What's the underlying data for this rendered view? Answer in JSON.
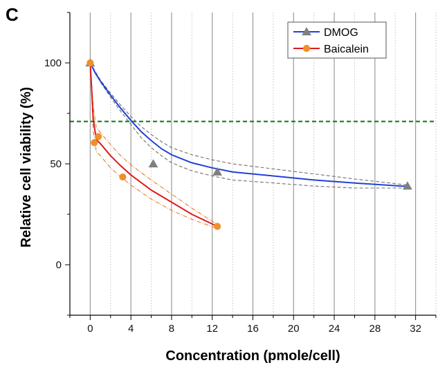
{
  "panel_label": "C",
  "chart_data": {
    "type": "scatter",
    "xlabel": "Concentration (pmole/cell)",
    "ylabel": "Relative cell viability (%)",
    "xlim": [
      -2,
      34
    ],
    "ylim": [
      -25,
      125
    ],
    "xticks": [
      0,
      4,
      8,
      12,
      16,
      20,
      24,
      28,
      32
    ],
    "yticks": [
      0,
      50,
      100
    ],
    "grid": "vertical",
    "legend_position": "top-right",
    "threshold_line": {
      "y": 71,
      "color": "#1a7a1a",
      "style": "dashed"
    },
    "series": [
      {
        "name": "DMOG",
        "marker": "triangle",
        "marker_color": "#808080",
        "line_color": "#2040d8",
        "points": [
          {
            "x": 0,
            "y": 100
          },
          {
            "x": 6.2,
            "y": 50
          },
          {
            "x": 12.5,
            "y": 46
          },
          {
            "x": 31.2,
            "y": 39
          }
        ],
        "fit": [
          [
            0,
            100
          ],
          [
            0.5,
            95
          ],
          [
            1,
            91
          ],
          [
            2,
            84
          ],
          [
            3,
            77.5
          ],
          [
            4,
            71.5
          ],
          [
            5,
            66
          ],
          [
            6,
            61.5
          ],
          [
            7,
            57.5
          ],
          [
            8,
            54.5
          ],
          [
            10,
            50.5
          ],
          [
            12,
            48
          ],
          [
            14,
            46
          ],
          [
            18,
            44
          ],
          [
            22,
            42
          ],
          [
            26,
            40.5
          ],
          [
            31.2,
            38.8
          ]
        ],
        "ci_upper": [
          [
            0,
            100
          ],
          [
            1,
            91.5
          ],
          [
            2,
            85
          ],
          [
            3,
            79
          ],
          [
            4,
            73.5
          ],
          [
            5,
            68.5
          ],
          [
            6,
            64.5
          ],
          [
            7,
            61
          ],
          [
            8,
            58
          ],
          [
            10,
            54.5
          ],
          [
            12,
            52
          ],
          [
            14,
            50
          ],
          [
            18,
            47.5
          ],
          [
            22,
            45
          ],
          [
            26,
            42.5
          ],
          [
            31.2,
            39.5
          ]
        ],
        "ci_lower": [
          [
            0,
            100
          ],
          [
            1,
            90.5
          ],
          [
            2,
            83
          ],
          [
            3,
            76
          ],
          [
            4,
            69.5
          ],
          [
            5,
            63
          ],
          [
            6,
            58
          ],
          [
            7,
            54
          ],
          [
            8,
            50.5
          ],
          [
            10,
            46.5
          ],
          [
            12,
            44
          ],
          [
            14,
            42
          ],
          [
            18,
            40.5
          ],
          [
            22,
            39
          ],
          [
            26,
            38
          ],
          [
            31.2,
            38
          ]
        ],
        "ci_color": "#707070"
      },
      {
        "name": "Baicalein",
        "marker": "circle",
        "marker_color": "#f0902a",
        "line_color": "#e01818",
        "points": [
          {
            "x": 0,
            "y": 100
          },
          {
            "x": 0.4,
            "y": 60.5
          },
          {
            "x": 0.8,
            "y": 63.5
          },
          {
            "x": 3.2,
            "y": 43.5
          },
          {
            "x": 12.5,
            "y": 19
          }
        ],
        "fit": [
          [
            0,
            100
          ],
          [
            0.3,
            72
          ],
          [
            0.6,
            62
          ],
          [
            1,
            60
          ],
          [
            2,
            54
          ],
          [
            3,
            49
          ],
          [
            4,
            44.5
          ],
          [
            6,
            37
          ],
          [
            8,
            31
          ],
          [
            10,
            25
          ],
          [
            12.5,
            19
          ]
        ],
        "ci_upper": [
          [
            0,
            100
          ],
          [
            0.3,
            78
          ],
          [
            0.6,
            68
          ],
          [
            1,
            65.5
          ],
          [
            2,
            59.5
          ],
          [
            3,
            54
          ],
          [
            4,
            49.5
          ],
          [
            6,
            42
          ],
          [
            8,
            35
          ],
          [
            10,
            28
          ],
          [
            12.5,
            20
          ]
        ],
        "ci_lower": [
          [
            0,
            100
          ],
          [
            0.3,
            66
          ],
          [
            0.6,
            56
          ],
          [
            1,
            54
          ],
          [
            2,
            48
          ],
          [
            3,
            43.5
          ],
          [
            4,
            39.5
          ],
          [
            6,
            32.5
          ],
          [
            8,
            27
          ],
          [
            10,
            22.5
          ],
          [
            12.5,
            18
          ]
        ],
        "ci_color": "#e0802a"
      }
    ]
  }
}
